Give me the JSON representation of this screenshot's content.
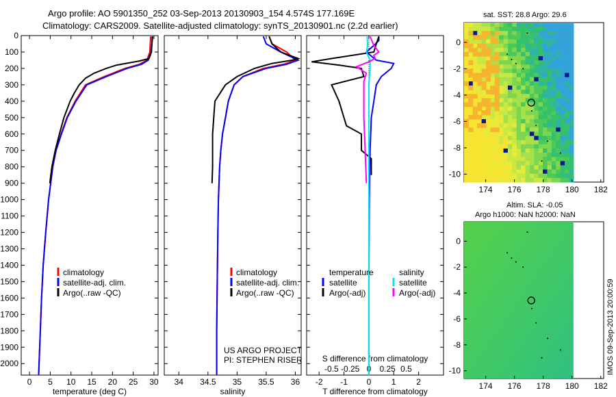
{
  "header": {
    "line1": "Argo profile: AO 5901350_252 03-Sep-2013 20130903_154 4.574S 177.169E",
    "line2": "Climatology: CARS2009. Satellite-adjusted climatology: synTS_20130901.nc (2.2d earlier)"
  },
  "colors": {
    "climatology": "#ff0000",
    "satellite": "#0000ff",
    "argo": "#000000",
    "sat_salinity": "#00e5ee",
    "argo_salinity": "#ff00ff"
  },
  "legends": {
    "climatology": "climatology",
    "satellite_adj": "satellite-adj. clim.",
    "argo_raw": "Argo(..raw -QC)",
    "temperature": "temperature",
    "salinity": "salinity",
    "satellite": "satellite",
    "argo_adj": "Argo(-adj)"
  },
  "credit": {
    "line1": "US ARGO PROJECT",
    "line2": "PI: STEPHEN RISER"
  },
  "side_stamp": "IMOS 09-Sep-2013 20:00:59",
  "maps": {
    "sst_title": "sat. SST: 28.8 Argo: 29.6",
    "sla_title1": "Altim. SLA: -0.05",
    "sla_title2": "Argo h1000: NaN h2000: NaN",
    "float_lon": 177.169,
    "float_lat": -4.574,
    "xticks": [
      174,
      176,
      178,
      180,
      182
    ],
    "yticks": [
      0,
      -2,
      -4,
      -6,
      -8,
      -10
    ]
  },
  "chart_data": [
    {
      "type": "line",
      "xlabel": "temperature (deg C)",
      "ylabel": "",
      "xlim": [
        -2,
        31
      ],
      "ylim": [
        2070,
        0
      ],
      "xticks": [
        0,
        5,
        10,
        15,
        20,
        25,
        30
      ],
      "yticks": [
        0,
        100,
        200,
        300,
        400,
        500,
        600,
        700,
        800,
        900,
        1000,
        1100,
        1200,
        1300,
        1400,
        1500,
        1600,
        1700,
        1800,
        1900,
        2000
      ],
      "series": [
        {
          "name": "climatology",
          "color": "#ff0000",
          "depth": [
            5,
            100,
            150,
            175,
            200,
            250,
            300,
            400,
            500,
            600,
            700,
            800,
            1000,
            1200,
            1400,
            1600,
            1800,
            2000,
            2070
          ],
          "values": [
            29.2,
            29.0,
            28.3,
            26.5,
            23.0,
            18.0,
            13.5,
            11.0,
            9.0,
            7.6,
            6.4,
            5.6,
            4.6,
            3.9,
            3.3,
            2.9,
            2.6,
            2.3,
            2.2
          ]
        },
        {
          "name": "satellite-adj. clim.",
          "color": "#0000ff",
          "depth": [
            5,
            100,
            150,
            175,
            200,
            250,
            300,
            400,
            500,
            600,
            700,
            800,
            1000,
            1200,
            1400,
            1600,
            1800,
            2000,
            2070
          ],
          "values": [
            29.7,
            29.3,
            28.6,
            27.0,
            23.5,
            18.5,
            13.8,
            11.2,
            9.1,
            7.7,
            6.4,
            5.6,
            4.6,
            3.9,
            3.3,
            2.9,
            2.6,
            2.3,
            2.2
          ]
        },
        {
          "name": "Argo(..raw -QC)",
          "color": "#000000",
          "depth": [
            5,
            100,
            140,
            155,
            180,
            200,
            230,
            260,
            300,
            350,
            400,
            500,
            600,
            700,
            800,
            900
          ],
          "values": [
            29.6,
            29.4,
            28.8,
            26.5,
            21.0,
            18.5,
            15.5,
            13.5,
            12.0,
            10.8,
            9.8,
            8.3,
            7.2,
            6.2,
            5.4,
            4.9
          ]
        }
      ],
      "legend": "lower-right"
    },
    {
      "type": "line",
      "xlabel": "salinity",
      "ylabel": "",
      "xlim": [
        33.75,
        36.1
      ],
      "ylim": [
        2070,
        0
      ],
      "xticks": [
        34,
        34.5,
        35,
        35.5,
        36
      ],
      "series": [
        {
          "name": "climatology",
          "color": "#ff0000",
          "depth": [
            5,
            50,
            100,
            150,
            175,
            200,
            250,
            300,
            400,
            500,
            600,
            700,
            800,
            1000,
            1200,
            1500,
            1800,
            2070
          ],
          "values": [
            35.55,
            35.6,
            35.85,
            36.0,
            35.8,
            35.45,
            35.1,
            34.95,
            34.85,
            34.8,
            34.75,
            34.72,
            34.7,
            34.68,
            34.67,
            34.66,
            34.65,
            34.65
          ]
        },
        {
          "name": "satellite-adj. clim.",
          "color": "#0000ff",
          "depth": [
            5,
            50,
            100,
            150,
            175,
            200,
            250,
            300,
            400,
            500,
            600,
            700,
            800,
            1000,
            1200,
            1500,
            1800,
            2070
          ],
          "values": [
            35.45,
            35.5,
            35.75,
            36.05,
            35.85,
            35.5,
            35.1,
            34.95,
            34.85,
            34.8,
            34.75,
            34.72,
            34.7,
            34.68,
            34.67,
            34.66,
            34.65,
            34.65
          ]
        },
        {
          "name": "Argo(..raw -QC)",
          "color": "#000000",
          "depth": [
            5,
            50,
            100,
            140,
            150,
            170,
            200,
            250,
            300,
            400,
            500,
            600,
            700,
            800,
            900
          ],
          "values": [
            35.55,
            35.6,
            35.75,
            36.05,
            35.95,
            35.6,
            35.3,
            35.0,
            34.8,
            34.62,
            34.6,
            34.58,
            34.58,
            34.58,
            34.57
          ]
        }
      ],
      "legend": "lower-right"
    },
    {
      "type": "line",
      "xlabel": "T difference from climatology",
      "xlabel2": "S difference from climatology",
      "ylabel": "",
      "xlim": [
        -2.5,
        3
      ],
      "ylim": [
        2070,
        0
      ],
      "xticks": [
        -2,
        -1,
        0,
        1,
        2
      ],
      "xticks2": [
        -0.5,
        -0.25,
        0,
        0.25,
        0.5
      ],
      "series": [
        {
          "name": "temperature satellite",
          "color": "#0000ff",
          "depth": [
            5,
            30,
            60,
            100,
            150,
            170,
            200,
            250,
            300,
            400,
            500,
            700,
            1000,
            1500,
            2070
          ],
          "values": [
            0.4,
            0.4,
            0.2,
            -0.1,
            0.3,
            1.0,
            0.9,
            0.5,
            0.3,
            0.2,
            0.1,
            0.05,
            0.02,
            0.0,
            0.0
          ]
        },
        {
          "name": "temperature Argo(-adj)",
          "color": "#000000",
          "depth": [
            5,
            50,
            100,
            140,
            160,
            180,
            200,
            250,
            300,
            400,
            500,
            550,
            600,
            700,
            750,
            800,
            850
          ],
          "values": [
            0.4,
            0.3,
            0.2,
            -1.5,
            -2.3,
            -1.2,
            -0.3,
            -0.2,
            -1.5,
            -1.2,
            -1.0,
            -0.9,
            -0.3,
            -0.3,
            0.1,
            0.1,
            0.1
          ]
        },
        {
          "name": "salinity satellite",
          "color": "#00e5ee",
          "depth": [
            5,
            60,
            100,
            150,
            200,
            300,
            500,
            800,
            1200,
            1600,
            2070
          ],
          "values": [
            -0.07,
            -0.05,
            -0.1,
            0.05,
            0.05,
            0.0,
            0.0,
            0.0,
            0.0,
            0.0,
            0.0
          ]
        },
        {
          "name": "salinity Argo(-adj)",
          "color": "#ff00ff",
          "depth": [
            5,
            60,
            100,
            120,
            140,
            160,
            190,
            200,
            230,
            280,
            350,
            500,
            700,
            900
          ],
          "values": [
            0.05,
            0.2,
            0.4,
            0.2,
            0.25,
            0.0,
            -0.5,
            -0.4,
            -0.1,
            -0.2,
            -0.2,
            -0.2,
            -0.15,
            -0.1
          ]
        }
      ],
      "legend": "lower-right"
    }
  ]
}
